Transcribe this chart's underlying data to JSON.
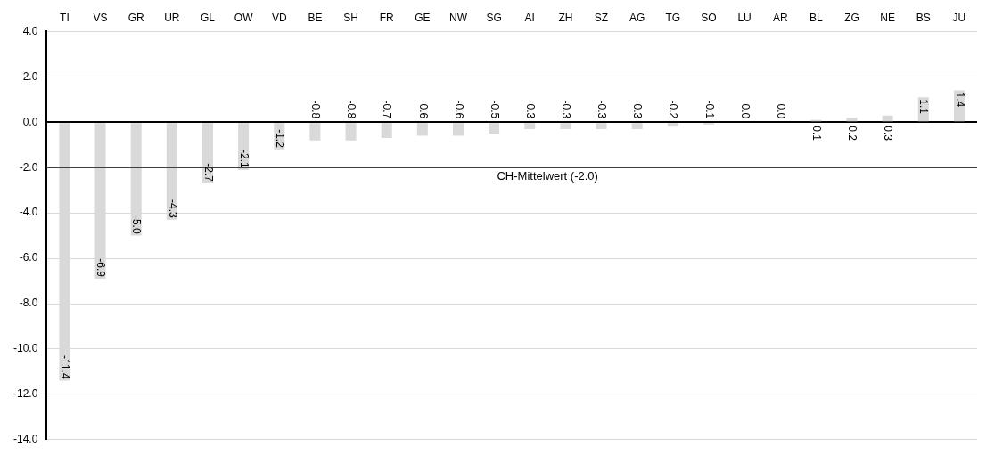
{
  "chart_data": {
    "type": "bar",
    "categories": [
      "TI",
      "VS",
      "GR",
      "UR",
      "GL",
      "OW",
      "VD",
      "BE",
      "SH",
      "FR",
      "GE",
      "NW",
      "SG",
      "AI",
      "ZH",
      "SZ",
      "AG",
      "TG",
      "SO",
      "LU",
      "AR",
      "BL",
      "ZG",
      "NE",
      "BS",
      "JU"
    ],
    "values": [
      -11.4,
      -6.9,
      -5.0,
      -4.3,
      -2.7,
      -2.1,
      -1.2,
      -0.8,
      -0.8,
      -0.7,
      -0.6,
      -0.6,
      -0.5,
      -0.3,
      -0.3,
      -0.3,
      -0.3,
      -0.2,
      -0.1,
      0.0,
      0.0,
      0.1,
      0.2,
      0.3,
      1.1,
      1.4
    ],
    "value_labels": [
      "-11.4",
      "-6.9",
      "-5.0",
      "-4.3",
      "-2.7",
      "-2.1",
      "-1.2",
      "-0.8",
      "-0.8",
      "-0.7",
      "-0.6",
      "-0.6",
      "-0.5",
      "-0.3",
      "-0.3",
      "-0.3",
      "-0.3",
      "-0.2",
      "-0.1",
      "0.0",
      "0.0",
      "0.1",
      "0.2",
      "0.3",
      "1.1",
      "1.4"
    ],
    "color": "#d9d9d9",
    "ylim": [
      -14,
      4
    ],
    "yticks": [
      {
        "value": -14,
        "label": "-14.0"
      },
      {
        "value": -12,
        "label": "-12.0"
      },
      {
        "value": -10,
        "label": "-10.0"
      },
      {
        "value": -8,
        "label": "-8.0"
      },
      {
        "value": -6,
        "label": "-6.0"
      },
      {
        "value": -4,
        "label": "-4.0"
      },
      {
        "value": -2,
        "label": "-2.0"
      },
      {
        "value": 0,
        "label": "0.0"
      },
      {
        "value": 2,
        "label": "2.0"
      },
      {
        "value": 4,
        "label": "4.0"
      }
    ],
    "grid": "y",
    "legend": false,
    "ref_lines": [
      {
        "axis": "y",
        "value": -2,
        "label": "CH-Mittelwert (-2.0)",
        "color": "#404040"
      }
    ]
  }
}
